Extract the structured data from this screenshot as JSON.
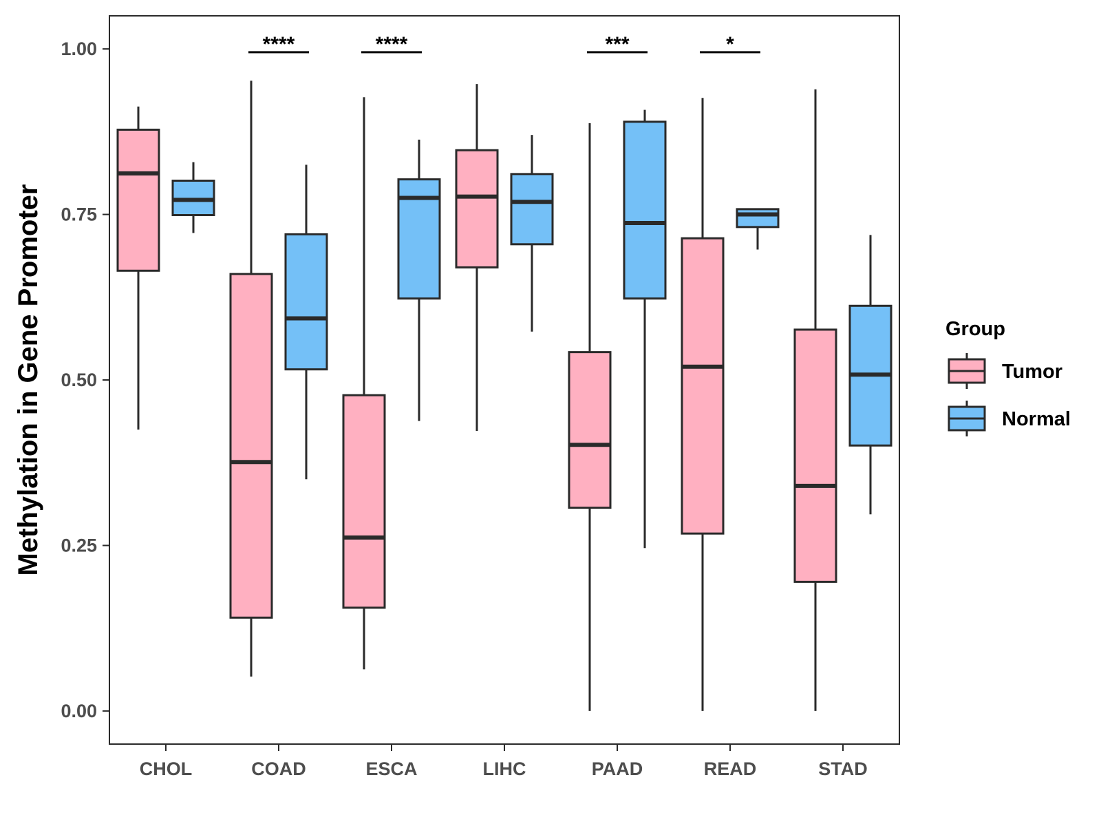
{
  "chart_data": {
    "type": "boxplot",
    "title": "",
    "xlabel": "",
    "ylabel": "Methylation in Gene Promoter",
    "ylim": [
      -0.05,
      1.05
    ],
    "yticks": [
      0.0,
      0.25,
      0.5,
      0.75,
      1.0
    ],
    "ytick_labels": [
      "0.00",
      "0.25",
      "0.50",
      "0.75",
      "1.00"
    ],
    "categories": [
      "CHOL",
      "COAD",
      "ESCA",
      "LIHC",
      "PAAD",
      "READ",
      "STAD"
    ],
    "legend": {
      "title": "Group",
      "position": "right",
      "entries": [
        "Tumor",
        "Normal"
      ]
    },
    "colors": {
      "Tumor": "#FFB0C1",
      "Normal": "#74C0F7",
      "outline": "#2a2a2a"
    },
    "series": [
      {
        "name": "Tumor",
        "boxes": [
          {
            "category": "CHOL",
            "min": 0.425,
            "q1": 0.665,
            "median": 0.812,
            "q3": 0.878,
            "max": 0.913
          },
          {
            "category": "COAD",
            "min": 0.052,
            "q1": 0.141,
            "median": 0.376,
            "q3": 0.66,
            "max": 0.952
          },
          {
            "category": "ESCA",
            "min": 0.063,
            "q1": 0.156,
            "median": 0.262,
            "q3": 0.477,
            "max": 0.927
          },
          {
            "category": "LIHC",
            "min": 0.423,
            "q1": 0.67,
            "median": 0.777,
            "q3": 0.847,
            "max": 0.947
          },
          {
            "category": "PAAD",
            "min": 0.0,
            "q1": 0.307,
            "median": 0.402,
            "q3": 0.542,
            "max": 0.888
          },
          {
            "category": "READ",
            "min": 0.0,
            "q1": 0.268,
            "median": 0.52,
            "q3": 0.714,
            "max": 0.926
          },
          {
            "category": "STAD",
            "min": 0.0,
            "q1": 0.195,
            "median": 0.34,
            "q3": 0.576,
            "max": 0.939
          }
        ]
      },
      {
        "name": "Normal",
        "boxes": [
          {
            "category": "CHOL",
            "min": 0.722,
            "q1": 0.749,
            "median": 0.772,
            "q3": 0.801,
            "max": 0.829
          },
          {
            "category": "COAD",
            "min": 0.35,
            "q1": 0.516,
            "median": 0.593,
            "q3": 0.72,
            "max": 0.825
          },
          {
            "category": "ESCA",
            "min": 0.438,
            "q1": 0.623,
            "median": 0.775,
            "q3": 0.803,
            "max": 0.863
          },
          {
            "category": "LIHC",
            "min": 0.573,
            "q1": 0.705,
            "median": 0.769,
            "q3": 0.811,
            "max": 0.87
          },
          {
            "category": "PAAD",
            "min": 0.246,
            "q1": 0.623,
            "median": 0.737,
            "q3": 0.89,
            "max": 0.908
          },
          {
            "category": "READ",
            "min": 0.697,
            "q1": 0.731,
            "median": 0.75,
            "q3": 0.758,
            "max": 0.758
          },
          {
            "category": "STAD",
            "min": 0.297,
            "q1": 0.401,
            "median": 0.508,
            "q3": 0.612,
            "max": 0.719
          }
        ]
      }
    ],
    "significance": [
      {
        "category": "COAD",
        "label": "****",
        "y": 0.995
      },
      {
        "category": "ESCA",
        "label": "****",
        "y": 0.995
      },
      {
        "category": "PAAD",
        "label": "***",
        "y": 0.995
      },
      {
        "category": "READ",
        "label": "*",
        "y": 0.995
      }
    ],
    "grid": false
  }
}
